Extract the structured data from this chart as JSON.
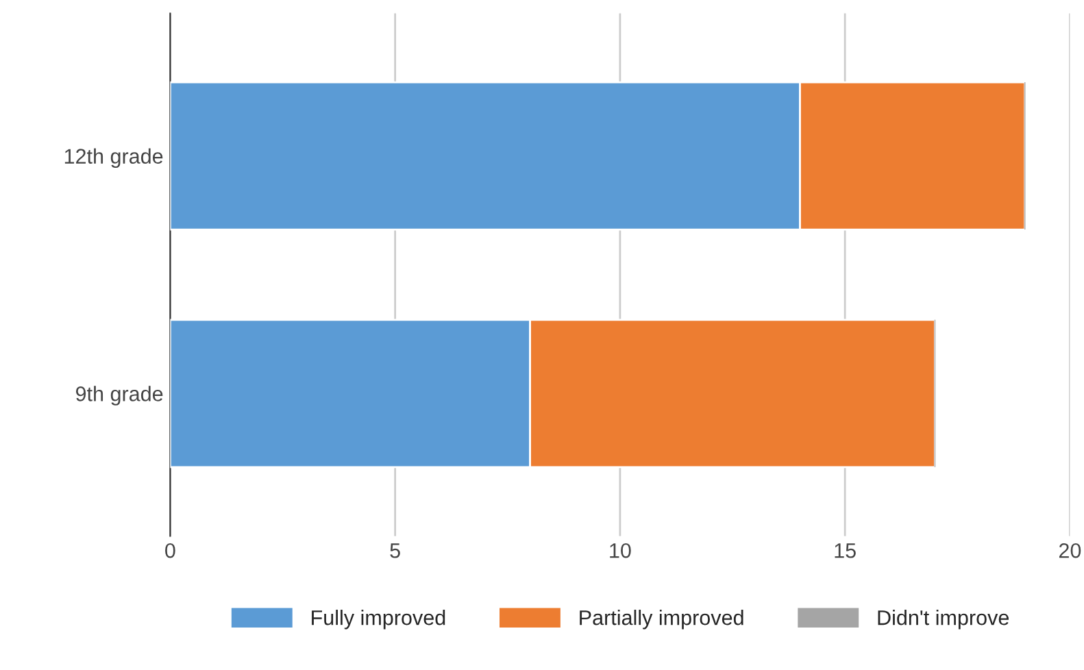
{
  "chart_data": {
    "type": "bar",
    "orientation": "horizontal",
    "stacked": true,
    "categories": [
      "12th grade",
      "9th grade"
    ],
    "series": [
      {
        "name": "Fully improved",
        "color": "#5b9bd5",
        "values": [
          14,
          8
        ]
      },
      {
        "name": "Partially improved",
        "color": "#ed7d31",
        "values": [
          5,
          9
        ]
      },
      {
        "name": "Didn't improve",
        "color": "#a5a5a5",
        "values": [
          0,
          0
        ]
      }
    ],
    "xlim": [
      0,
      20
    ],
    "xticks": [
      0,
      5,
      10,
      15,
      20
    ],
    "grid": "x",
    "legend": "bottom"
  }
}
